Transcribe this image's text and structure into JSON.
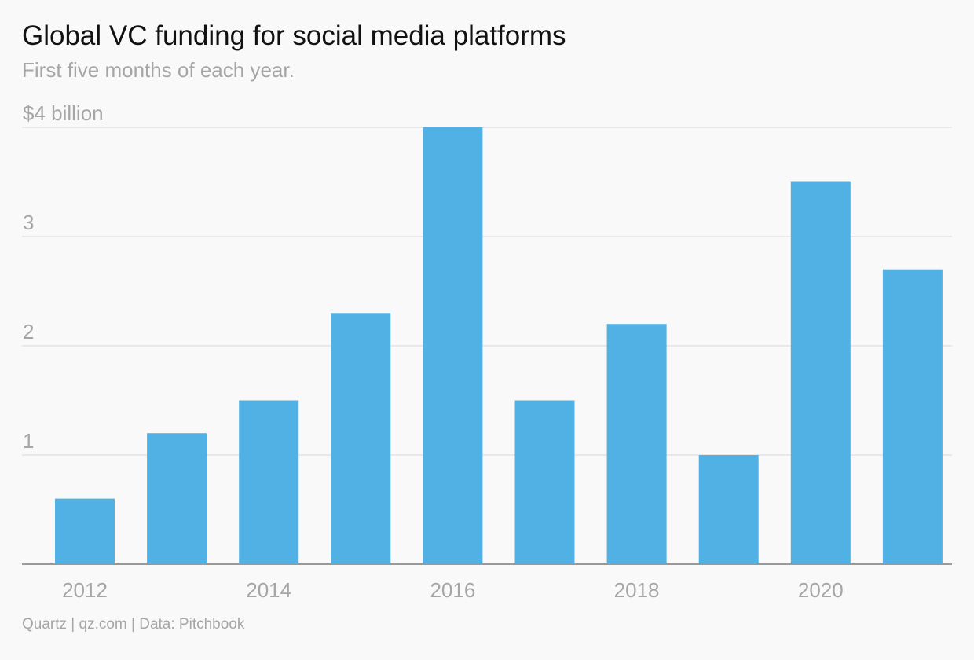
{
  "header": {
    "title": "Global VC funding for social media platforms",
    "subtitle": "First five months of each year."
  },
  "footer": {
    "source": "Quartz | qz.com | Data: Pitchbook"
  },
  "colors": {
    "bar": "#52b1e4",
    "grid": "#e3e3e3",
    "baseline": "#999999",
    "muted_text": "#a6a6a6"
  },
  "chart_data": {
    "type": "bar",
    "title": "Global VC funding for social media platforms",
    "subtitle": "First five months of each year.",
    "unit": "billion USD",
    "categories": [
      "2012",
      "2013",
      "2014",
      "2015",
      "2016",
      "2017",
      "2018",
      "2019",
      "2020",
      "2021"
    ],
    "values": [
      0.6,
      1.2,
      1.5,
      2.3,
      4.0,
      1.5,
      2.2,
      1.0,
      3.5,
      2.7
    ],
    "x_tick_labels": [
      "2012",
      "2014",
      "2016",
      "2018",
      "2020"
    ],
    "y_ticks": [
      1,
      2,
      3,
      4
    ],
    "y_tick_labels": [
      "1",
      "2",
      "3",
      "$4 billion"
    ],
    "ylim": [
      0,
      4
    ],
    "grid": true
  }
}
